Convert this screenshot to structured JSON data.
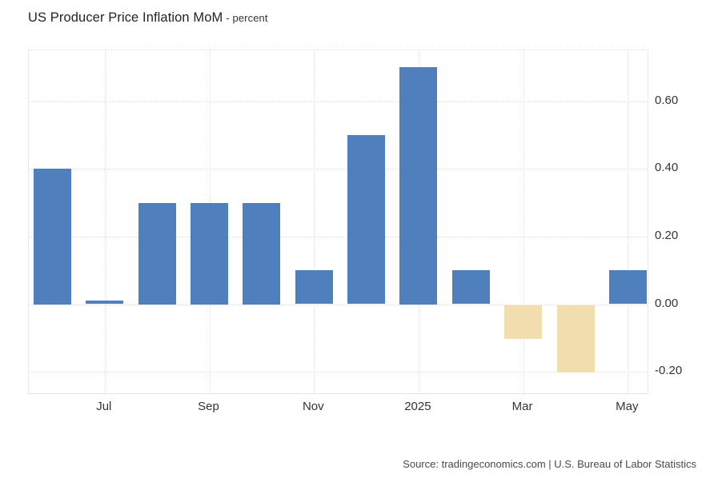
{
  "header": {
    "title": "US Producer Price Inflation MoM",
    "subtitle": "- percent"
  },
  "footer": {
    "source": "Source: tradingeconomics.com | U.S. Bureau of Labor Statistics"
  },
  "chart_data": {
    "type": "bar",
    "title": "US Producer Price Inflation MoM",
    "subtitle": "- percent",
    "values": [
      0.4,
      0.01,
      0.3,
      0.3,
      0.3,
      0.1,
      0.5,
      0.7,
      0.1,
      -0.1,
      -0.2,
      0.1
    ],
    "x_tick_positions": [
      1,
      3,
      5,
      7,
      9,
      11
    ],
    "x_tick_labels": [
      "Jul",
      "Sep",
      "Nov",
      "2025",
      "Mar",
      "May"
    ],
    "y_ticks": [
      0.6,
      0.4,
      0.2,
      0.0,
      -0.2
    ],
    "y_tick_labels": [
      "0.60",
      "0.40",
      "0.20",
      "0.00",
      "-0.20"
    ],
    "ylim": [
      -0.268,
      0.75
    ],
    "grid": "dotted",
    "legend": "none",
    "colors": {
      "positive_bar": "#4f80bd",
      "negative_bar": "#f2ddae",
      "grid_line": "#dcdcdc",
      "axis_text": "#333333"
    }
  }
}
